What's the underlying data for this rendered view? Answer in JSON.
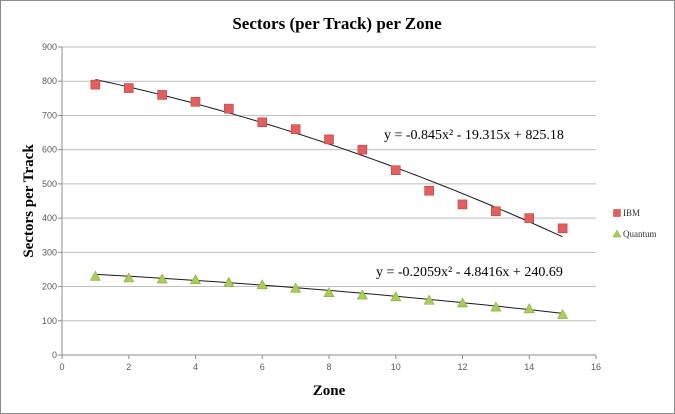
{
  "chart_data": {
    "type": "scatter",
    "title": "Sectors (per Track) per Zone",
    "xlabel": "Zone",
    "ylabel": "Sectors per Track",
    "xlim": [
      0,
      16
    ],
    "ylim": [
      0,
      900
    ],
    "xticks": [
      0,
      2,
      4,
      6,
      8,
      10,
      12,
      14,
      16
    ],
    "yticks": [
      0,
      100,
      200,
      300,
      400,
      500,
      600,
      700,
      800,
      900
    ],
    "grid": "horizontal",
    "legend_position": "right",
    "series": [
      {
        "name": "IBM",
        "marker": "square",
        "color": "#e15f5f",
        "x": [
          1,
          2,
          3,
          4,
          5,
          6,
          7,
          8,
          9,
          10,
          11,
          12,
          13,
          14,
          15
        ],
        "y": [
          790,
          780,
          760,
          740,
          720,
          680,
          660,
          630,
          600,
          540,
          480,
          440,
          420,
          400,
          370
        ],
        "trendline": {
          "type": "polynomial",
          "coefficients": [
            -0.845,
            -19.315,
            825.18
          ],
          "equation": "y = -0.845x² - 19.315x + 825.18"
        }
      },
      {
        "name": "Quantum",
        "marker": "triangle",
        "color": "#a9cd5a",
        "x": [
          1,
          2,
          3,
          4,
          5,
          6,
          7,
          8,
          9,
          10,
          11,
          12,
          13,
          14,
          15
        ],
        "y": [
          230,
          225,
          222,
          220,
          212,
          205,
          195,
          182,
          175,
          170,
          160,
          152,
          140,
          135,
          118
        ],
        "trendline": {
          "type": "polynomial",
          "coefficients": [
            -0.2059,
            -4.8416,
            240.69
          ],
          "equation": "y = -0.2059x² - 4.8416x + 240.69"
        }
      }
    ]
  }
}
